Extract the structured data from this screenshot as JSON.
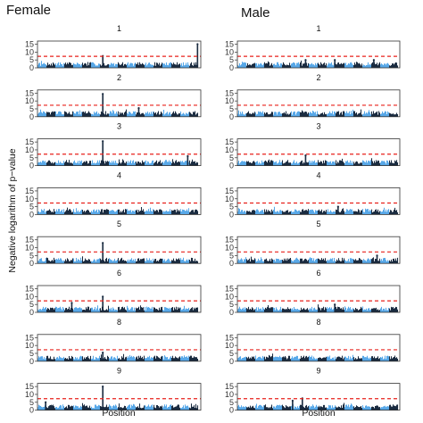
{
  "chart_data": {
    "type": "manhattan",
    "ylabel": "Negative logarithm of p−value",
    "xlabel": "Position",
    "ylim": [
      0,
      17
    ],
    "yticks": [
      0,
      5,
      10,
      15
    ],
    "threshold": 7.3,
    "colors": {
      "dark": "#1a2b40",
      "light": "#58a8e8",
      "threshold": "#e8211b"
    },
    "columns": [
      {
        "title": "Female",
        "panels": [
          {
            "label": "1",
            "peaks": [
              {
                "x": 0.4,
                "y": 7.5
              },
              {
                "x": 0.98,
                "y": 15
              }
            ]
          },
          {
            "label": "2",
            "peaks": [
              {
                "x": 0.4,
                "y": 14.5
              },
              {
                "x": 0.62,
                "y": 5.5
              }
            ]
          },
          {
            "label": "3",
            "peaks": [
              {
                "x": 0.4,
                "y": 15.5
              },
              {
                "x": 0.92,
                "y": 6
              }
            ]
          },
          {
            "label": "4",
            "peaks": []
          },
          {
            "label": "5",
            "peaks": [
              {
                "x": 0.4,
                "y": 13
              }
            ]
          },
          {
            "label": "6",
            "peaks": [
              {
                "x": 0.21,
                "y": 6
              },
              {
                "x": 0.4,
                "y": 10
              }
            ]
          },
          {
            "label": "8",
            "peaks": [
              {
                "x": 0.4,
                "y": 5.5
              }
            ]
          },
          {
            "label": "9",
            "peaks": [
              {
                "x": 0.4,
                "y": 15
              },
              {
                "x": 0.05,
                "y": 5
              }
            ]
          }
        ]
      },
      {
        "title": "Male",
        "panels": [
          {
            "label": "1",
            "peaks": [
              {
                "x": 0.42,
                "y": 5
              },
              {
                "x": 0.6,
                "y": 5
              },
              {
                "x": 0.84,
                "y": 5
              }
            ]
          },
          {
            "label": "2",
            "peaks": []
          },
          {
            "label": "3",
            "peaks": [
              {
                "x": 0.42,
                "y": 6.5
              }
            ]
          },
          {
            "label": "4",
            "peaks": [
              {
                "x": 0.62,
                "y": 5
              }
            ]
          },
          {
            "label": "5",
            "peaks": [
              {
                "x": 0.86,
                "y": 5
              }
            ]
          },
          {
            "label": "6",
            "peaks": [
              {
                "x": 0.6,
                "y": 5
              }
            ]
          },
          {
            "label": "8",
            "peaks": []
          },
          {
            "label": "9",
            "peaks": [
              {
                "x": 0.4,
                "y": 7.5
              },
              {
                "x": 0.34,
                "y": 6
              }
            ]
          }
        ]
      }
    ]
  }
}
